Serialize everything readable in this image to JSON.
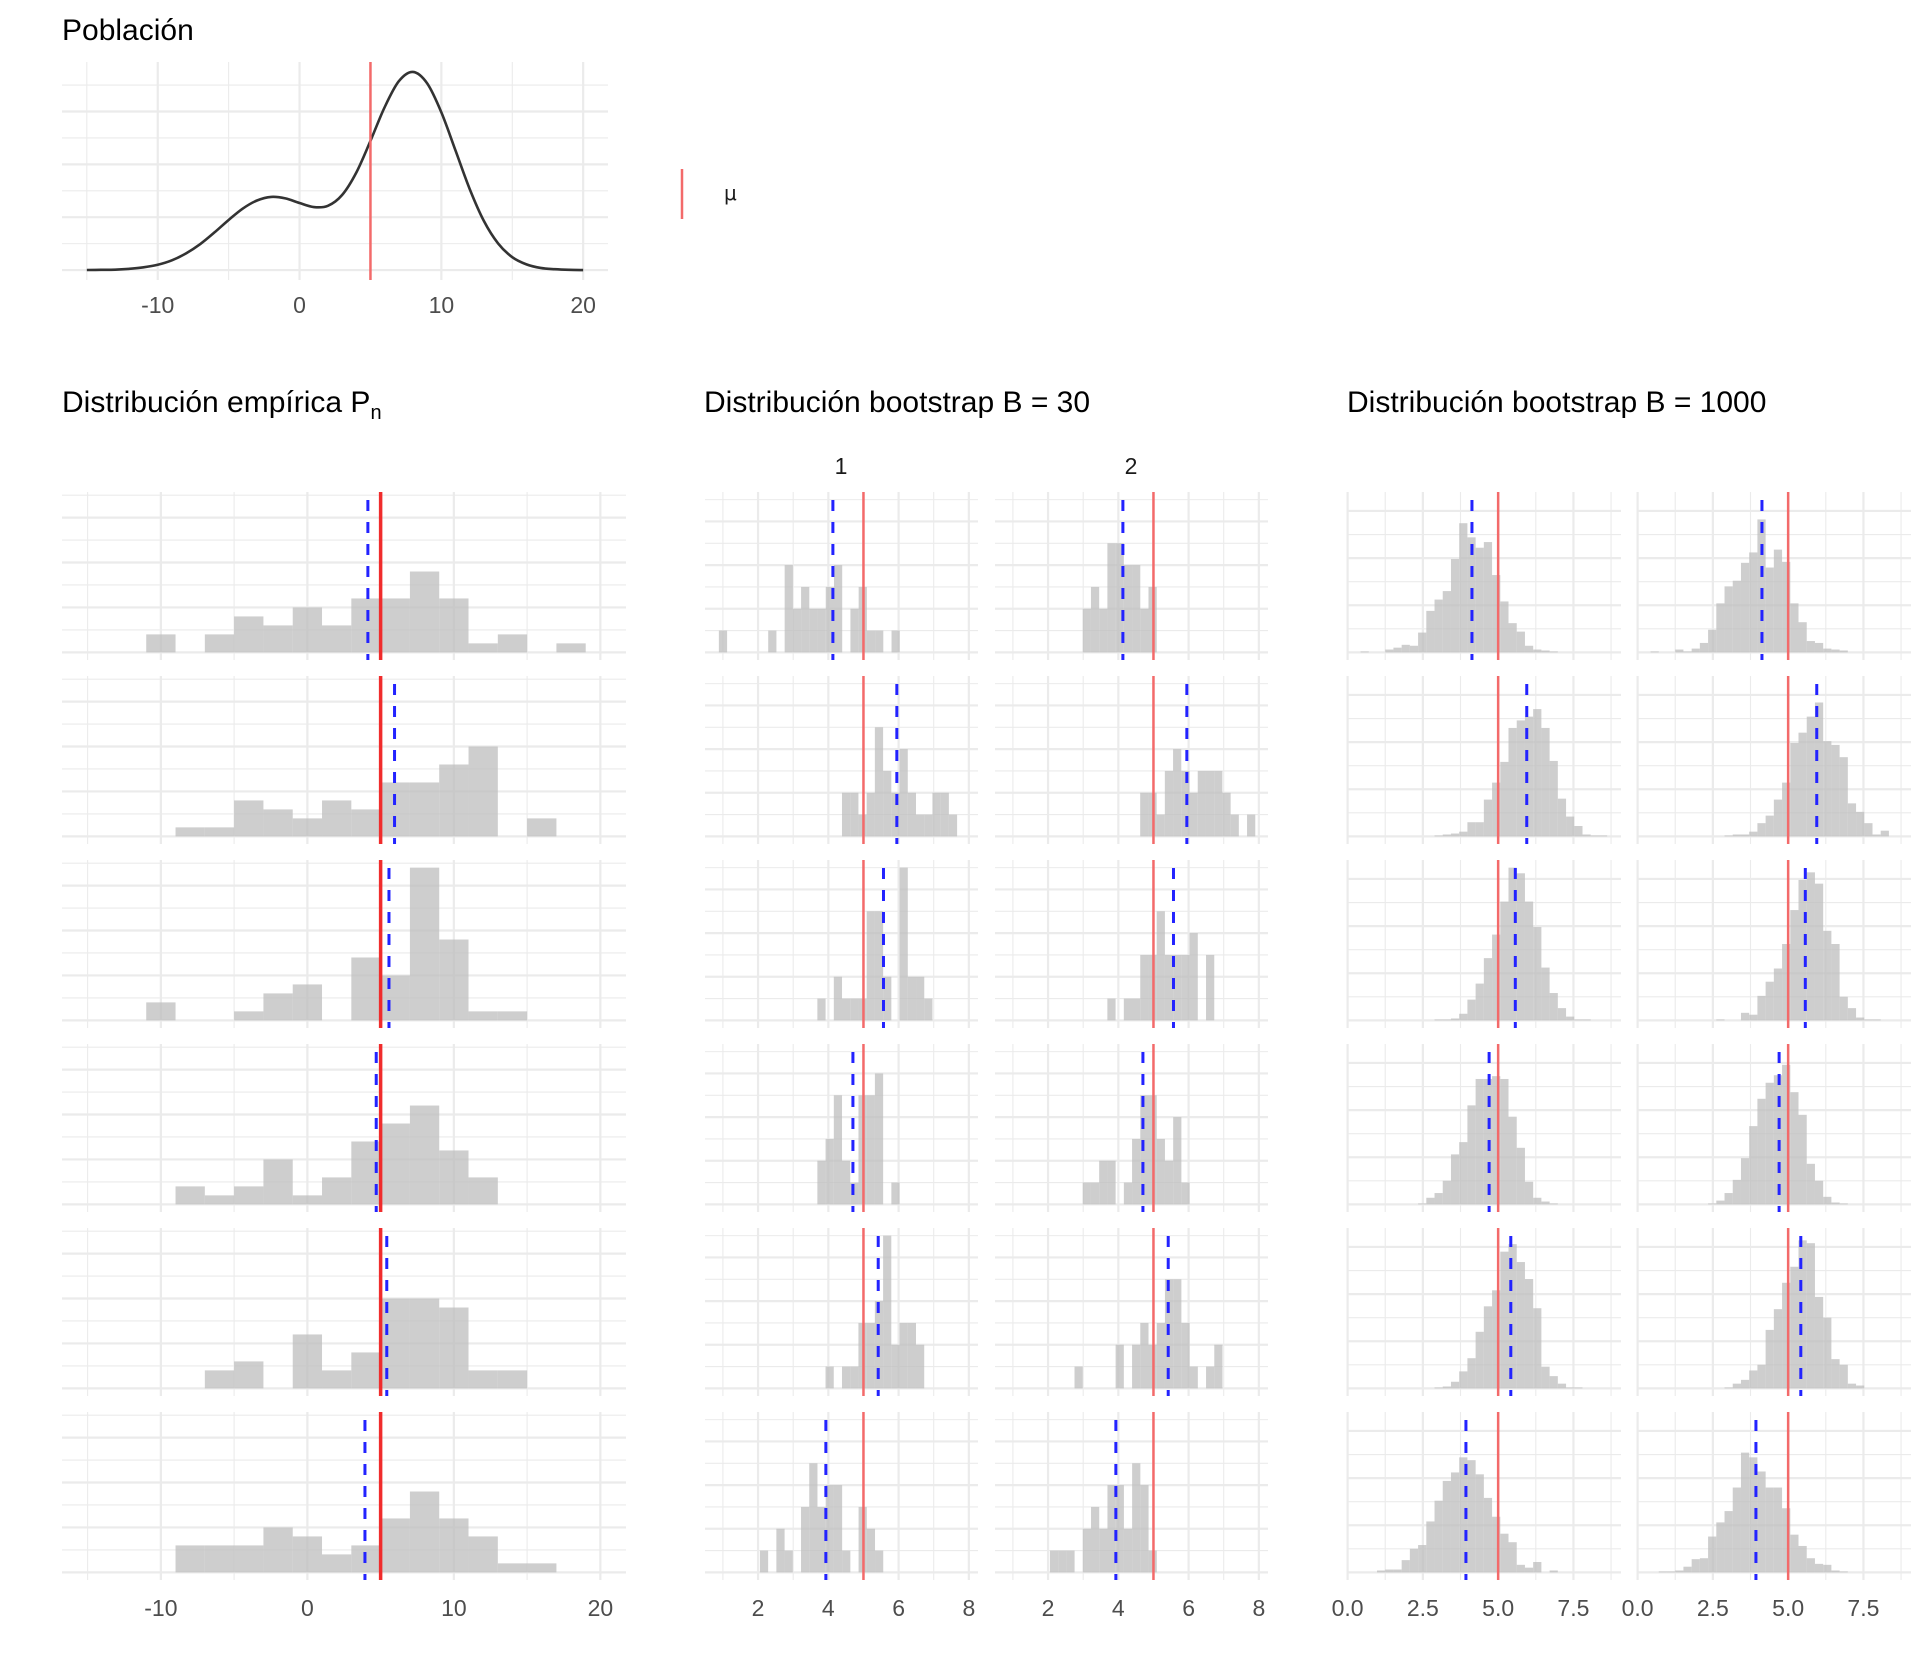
{
  "colors": {
    "grid": "#EBEBEB",
    "bar_fill": "#BDBDBD",
    "mu_empirical": "#F02C2C",
    "mu_bootstrap": "#F36A6A",
    "mean_line": "#2323FF",
    "density_line": "#333333"
  },
  "legend": {
    "entries": [
      {
        "label": "μ",
        "color": "#F36A6A",
        "shape": "vertical-line"
      }
    ],
    "position": "right"
  },
  "chart_data": [
    {
      "type": "line",
      "title": "Población",
      "mu": 5,
      "grid": true,
      "xlim": [
        -16.75,
        21.75
      ],
      "ylim": [
        -0.0047,
        0.0984
      ],
      "x_ticks": [
        -10,
        0,
        10,
        20
      ],
      "x_tick_labels": [
        "-10",
        "0",
        "10",
        "20"
      ],
      "y_breaks": [
        0,
        0.025,
        0.05,
        0.075
      ],
      "x": [
        -15,
        -14,
        -13,
        -12,
        -11,
        -10,
        -9,
        -8,
        -7,
        -6,
        -5,
        -4,
        -3,
        -2,
        -1,
        0,
        1,
        2,
        3,
        4,
        5,
        6,
        7,
        8,
        9,
        10,
        11,
        12,
        13,
        14,
        15,
        16,
        17,
        18,
        19,
        20
      ],
      "y": [
        3e-05,
        0.0001,
        0.0002,
        0.0006,
        0.0013,
        0.0025,
        0.0046,
        0.0079,
        0.0123,
        0.0178,
        0.0237,
        0.0291,
        0.0329,
        0.0346,
        0.0339,
        0.0317,
        0.0298,
        0.0304,
        0.0355,
        0.0461,
        0.0611,
        0.077,
        0.0893,
        0.0937,
        0.0883,
        0.0746,
        0.0565,
        0.0383,
        0.0232,
        0.0126,
        0.0061,
        0.0027,
        0.001,
        0.0004,
        0.0001,
        0.0
      ]
    },
    {
      "type": "histogram",
      "title": "Distribución empírica P",
      "title_subscript": "n",
      "mu": 5,
      "grid": true,
      "binwidth": 2,
      "xlim": [
        -16.75,
        21.75
      ],
      "ylim": [
        -0.85,
        17.85
      ],
      "x_ticks": [
        -10,
        0,
        10,
        20
      ],
      "x_tick_labels": [
        "-10",
        "0",
        "10",
        "20"
      ],
      "y_breaks": [
        0,
        5,
        10,
        15
      ],
      "sample_means": [
        4.13,
        5.95,
        5.57,
        4.7,
        5.42,
        3.93
      ],
      "facets": [
        {
          "label": "",
          "panels": [
            {
              "bin_start": -11,
              "counts": [
                2,
                0,
                2,
                4,
                3,
                5,
                3,
                6,
                6,
                9,
                6,
                1,
                2,
                0,
                1
              ]
            },
            {
              "bin_start": -9,
              "counts": [
                1,
                1,
                4,
                3,
                2,
                4,
                3,
                6,
                6,
                8,
                10,
                0,
                2
              ]
            },
            {
              "bin_start": -11,
              "counts": [
                2,
                0,
                0,
                1,
                3,
                4,
                0,
                7,
                5,
                17,
                9,
                1,
                1
              ]
            },
            {
              "bin_start": -9,
              "counts": [
                2,
                1,
                2,
                5,
                1,
                3,
                7,
                9,
                11,
                6,
                3
              ]
            },
            {
              "bin_start": -7,
              "counts": [
                2,
                3,
                0,
                6,
                2,
                4,
                10,
                10,
                9,
                2,
                2
              ]
            },
            {
              "bin_start": -9,
              "counts": [
                3,
                3,
                3,
                5,
                4,
                2,
                3,
                6,
                9,
                6,
                4,
                1,
                1
              ]
            }
          ]
        }
      ]
    },
    {
      "type": "histogram",
      "title": "Distribución bootstrap B = 30",
      "mu": 5,
      "grid": true,
      "binwidth": 0.234,
      "xlim": [
        0.49,
        8.26
      ],
      "ylim": [
        -0.35,
        7.35
      ],
      "x_ticks": [
        2,
        4,
        6,
        8
      ],
      "x_tick_labels": [
        "2",
        "4",
        "6",
        "8"
      ],
      "y_breaks": [
        0,
        2,
        4,
        6
      ],
      "sample_means": [
        4.13,
        5.95,
        5.57,
        4.7,
        5.42,
        3.93
      ],
      "facets": [
        {
          "label": "1",
          "panels": [
            {
              "bin_start": 0.885,
              "counts": [
                1,
                0,
                0,
                0,
                0,
                0,
                1,
                0,
                4,
                2,
                3,
                2,
                2,
                3,
                4,
                0,
                2,
                3,
                1,
                1,
                0,
                1
              ]
            },
            {
              "bin_start": 4.389,
              "counts": [
                2,
                2,
                1,
                2,
                5,
                3,
                2,
                4,
                2,
                1,
                1,
                2,
                2,
                1
              ]
            },
            {
              "bin_start": 3.688,
              "counts": [
                1,
                0,
                2,
                1,
                1,
                1,
                5,
                5,
                2,
                0,
                7,
                2,
                2,
                1
              ]
            },
            {
              "bin_start": 3.688,
              "counts": [
                2,
                3,
                5,
                2,
                1,
                5,
                5,
                6,
                0,
                1
              ]
            },
            {
              "bin_start": 3.921,
              "counts": [
                1,
                0,
                1,
                1,
                3,
                3,
                4,
                7,
                2,
                3,
                3,
                2
              ]
            },
            {
              "bin_start": 2.053,
              "counts": [
                1,
                0,
                2,
                1,
                0,
                3,
                5,
                3,
                4,
                4,
                1,
                0,
                3,
                2,
                1
              ]
            }
          ]
        },
        {
          "label": "2",
          "panels": [
            {
              "bin_start": 2.987,
              "counts": [
                2,
                3,
                2,
                5,
                5,
                4,
                4,
                2,
                3
              ]
            },
            {
              "bin_start": 4.622,
              "counts": [
                2,
                2,
                1,
                3,
                4,
                3,
                2,
                3,
                3,
                3,
                2,
                1,
                0,
                1
              ]
            },
            {
              "bin_start": 3.688,
              "counts": [
                1,
                0,
                1,
                1,
                3,
                3,
                5,
                3,
                3,
                3,
                4,
                0,
                3
              ]
            },
            {
              "bin_start": 2.987,
              "counts": [
                1,
                1,
                2,
                2,
                0,
                1,
                3,
                5,
                5,
                3,
                2,
                4,
                1
              ]
            },
            {
              "bin_start": 2.753,
              "counts": [
                1,
                0,
                0,
                0,
                0,
                2,
                0,
                2,
                3,
                2,
                3,
                5,
                5,
                3,
                1,
                0,
                1,
                2
              ]
            },
            {
              "bin_start": 2.053,
              "counts": [
                1,
                1,
                1,
                0,
                2,
                3,
                2,
                4,
                4,
                2,
                5,
                4,
                1
              ]
            }
          ]
        }
      ]
    },
    {
      "type": "histogram",
      "title": "Distribución bootstrap B = 1000",
      "mu": 5,
      "grid": true,
      "binwidth": 0.273,
      "xlim": [
        -0.02,
        9.08
      ],
      "ylim": [
        -8.1,
        170.1
      ],
      "x_ticks": [
        0,
        2.5,
        5,
        7.5
      ],
      "x_tick_labels": [
        "0.0",
        "2.5",
        "5.0",
        "7.5"
      ],
      "y_breaks": [
        0,
        50,
        100,
        150
      ],
      "sample_means": [
        4.13,
        5.95,
        5.57,
        4.7,
        5.42,
        3.93
      ],
      "facets": [
        {
          "label": "",
          "panels": [
            {
              "bin_start": 0.43,
              "counts": [
                1,
                0,
                0,
                3,
                5,
                8,
                7,
                21,
                44,
                56,
                65,
                99,
                137,
                122,
                111,
                117,
                82,
                54,
                31,
                22,
                7,
                3,
                2,
                1
              ]
            },
            {
              "bin_start": 2.887,
              "counts": [
                1,
                2,
                3,
                5,
                15,
                15,
                39,
                57,
                79,
                115,
                123,
                127,
                135,
                115,
                80,
                40,
                21,
                11,
                2,
                1,
                1
              ]
            },
            {
              "bin_start": 2.887,
              "counts": [
                1,
                1,
                2,
                7,
                22,
                39,
                66,
                91,
                126,
                162,
                156,
                126,
                99,
                56,
                29,
                13,
                4,
                1,
                1
              ]
            },
            {
              "bin_start": 2.341,
              "counts": [
                1,
                7,
                12,
                25,
                53,
                66,
                105,
                133,
                133,
                136,
                133,
                93,
                60,
                24,
                7,
                3,
                1
              ]
            },
            {
              "bin_start": 2.887,
              "counts": [
                1,
                2,
                7,
                18,
                32,
                60,
                87,
                104,
                145,
                153,
                134,
                116,
                85,
                23,
                13,
                5,
                1,
                1
              ]
            },
            {
              "bin_start": 0.976,
              "counts": [
                2,
                3,
                3,
                13,
                25,
                29,
                54,
                76,
                97,
                106,
                122,
                119,
                104,
                79,
                59,
                41,
                32,
                8,
                5,
                11,
                0,
                2
              ]
            }
          ]
        },
        {
          "label": "",
          "panels": [
            {
              "bin_start": 0.43,
              "counts": [
                1,
                0,
                0,
                3,
                1,
                4,
                10,
                24,
                52,
                70,
                76,
                95,
                106,
                141,
                90,
                109,
                96,
                52,
                32,
                12,
                10,
                4,
                3,
                2
              ]
            },
            {
              "bin_start": 2.887,
              "counts": [
                1,
                2,
                2,
                5,
                14,
                22,
                39,
                57,
                99,
                110,
                127,
                142,
                101,
                97,
                84,
                35,
                26,
                14,
                2,
                6
              ]
            },
            {
              "bin_start": 2.614,
              "counts": [
                1,
                0,
                0,
                8,
                6,
                26,
                41,
                55,
                81,
                117,
                149,
                157,
                145,
                95,
                81,
                25,
                13,
                3,
                1,
                1
              ]
            },
            {
              "bin_start": 2.341,
              "counts": [
                1,
                4,
                12,
                26,
                49,
                83,
                112,
                129,
                137,
                148,
                119,
                95,
                43,
                25,
                8,
                2,
                1
              ]
            },
            {
              "bin_start": 2.887,
              "counts": [
                1,
                5,
                9,
                19,
                25,
                62,
                84,
                112,
                129,
                157,
                154,
                97,
                75,
                31,
                25,
                5,
                3
              ]
            },
            {
              "bin_start": 0.703,
              "counts": [
                1,
                1,
                2,
                6,
                14,
                15,
                38,
                53,
                65,
                90,
                127,
                122,
                107,
                90,
                90,
                68,
                40,
                28,
                15,
                9,
                8,
                2,
                1
              ]
            }
          ]
        }
      ]
    }
  ]
}
